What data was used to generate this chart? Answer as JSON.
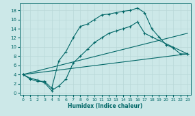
{
  "bg_color": "#cce8e8",
  "grid_color": "#aacccc",
  "line_color": "#006666",
  "xlabel": "Humidex (Indice chaleur)",
  "xlim": [
    -0.5,
    23.5
  ],
  "ylim": [
    -0.5,
    19.5
  ],
  "xticks": [
    0,
    1,
    2,
    3,
    4,
    5,
    6,
    7,
    8,
    9,
    10,
    11,
    12,
    13,
    14,
    15,
    16,
    17,
    18,
    19,
    20,
    21,
    22,
    23
  ],
  "yticks": [
    0,
    2,
    4,
    6,
    8,
    10,
    12,
    14,
    16,
    18
  ],
  "curve1_x": [
    0,
    1,
    2,
    3,
    4,
    5,
    6,
    7,
    8,
    9,
    10,
    11,
    12,
    13,
    14,
    15,
    16,
    17,
    18,
    19,
    20,
    21,
    22,
    23
  ],
  "curve1_y": [
    4,
    3,
    2.5,
    2.5,
    1.0,
    7.0,
    9.0,
    12.0,
    14.5,
    15.0,
    16.0,
    17.0,
    17.2,
    17.5,
    17.8,
    18.0,
    18.5,
    17.5,
    14.0,
    12.2,
    10.5,
    9.8,
    8.5,
    8.5
  ],
  "curve2_x": [
    0,
    1,
    2,
    3,
    4,
    5,
    6,
    7,
    8,
    9,
    10,
    11,
    12,
    13,
    14,
    15,
    16,
    17,
    18,
    23
  ],
  "curve2_y": [
    4,
    3.2,
    2.8,
    2.2,
    0.5,
    1.5,
    3.0,
    6.5,
    8.0,
    9.5,
    11.0,
    12.0,
    13.0,
    13.5,
    14.0,
    14.5,
    15.5,
    13.0,
    12.2,
    8.5
  ],
  "line3_x": [
    0,
    23
  ],
  "line3_y": [
    4,
    8.5
  ],
  "line4_x": [
    0,
    23
  ],
  "line4_y": [
    4,
    13.0
  ]
}
